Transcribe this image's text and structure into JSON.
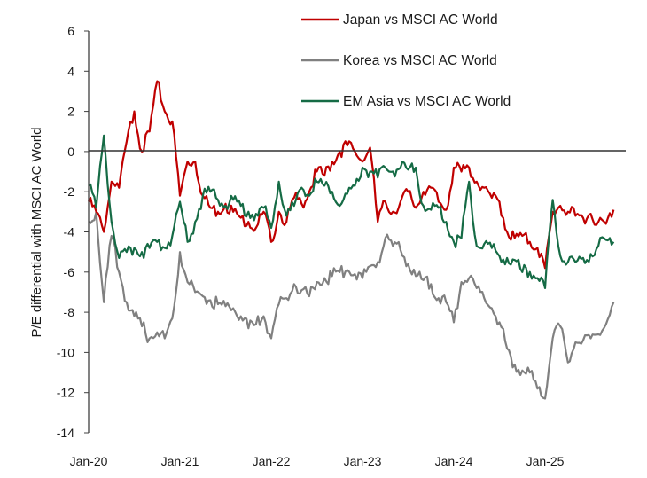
{
  "chart_data": {
    "type": "line",
    "title": "",
    "xlabel": "",
    "ylabel": "P/E differential with MSCI AC World",
    "ylim": [
      -14,
      6
    ],
    "yticks": [
      6,
      4,
      2,
      0,
      -2,
      -4,
      -6,
      -8,
      -10,
      -12,
      -14
    ],
    "xtick_labels": [
      "Jan-20",
      "Jan-21",
      "Jan-22",
      "Jan-23",
      "Jan-24",
      "Jan-25"
    ],
    "grid": false,
    "legend": "top-right",
    "x_start": "2020-01",
    "x_frequency": "monthly",
    "series": [
      {
        "name": "Japan vs MSCI AC World",
        "color": "#c00000",
        "values": [
          -2.5,
          -3,
          -4,
          -1.5,
          -1.8,
          0.5,
          2.0,
          0,
          1.0,
          3.5,
          2,
          1.5,
          -2.2,
          -0.5,
          -0.5,
          -2.2,
          -2.8,
          -3,
          -2.6,
          -3,
          -3.3,
          -3.5,
          -3.8,
          -3,
          -4.5,
          -3.0,
          -3.5,
          -2.3,
          -2.6,
          -2,
          -1.0,
          -1.2,
          -0.5,
          0,
          0.3,
          0,
          -0.5,
          0.2,
          -3.5,
          -2.5,
          -3,
          -2.5,
          -2,
          -2.8,
          -2,
          -1.8,
          -2.5,
          -2.9,
          -0.8,
          -1.0,
          -0.8,
          -1.5,
          -1.8,
          -2.3,
          -2.5,
          -4.0,
          -4.3,
          -4.2,
          -4.5,
          -4.8,
          -5.8,
          -3,
          -2.7,
          -3,
          -3.2,
          -3.3,
          -3.1,
          -3.5,
          -3.6,
          -2.9
        ]
      },
      {
        "name": "Korea vs MSCI AC World",
        "color": "#808080",
        "values": [
          -3.5,
          -3.0,
          -7.5,
          -4.2,
          -6,
          -7.5,
          -8.2,
          -8.7,
          -9.3,
          -9.0,
          -9.3,
          -8.3,
          -5.0,
          -6.5,
          -7,
          -7.2,
          -7.4,
          -7.6,
          -7.7,
          -7.8,
          -8.2,
          -8.8,
          -8.6,
          -8.2,
          -9.3,
          -7.6,
          -7.3,
          -6.6,
          -6.9,
          -7.2,
          -6.5,
          -6.3,
          -6.2,
          -6.0,
          -5.9,
          -6.1,
          -6.3,
          -5.7,
          -5.5,
          -4.3,
          -4.7,
          -4.9,
          -5.6,
          -6.2,
          -6.4,
          -6.6,
          -7.3,
          -7.5,
          -8.5,
          -6.5,
          -6.3,
          -6.8,
          -7.3,
          -7.8,
          -8.5,
          -9.8,
          -10.6,
          -10.9,
          -11.0,
          -11.8,
          -12.3,
          -9.3,
          -8.7,
          -10.5,
          -9.5,
          -9.4,
          -9.3,
          -9.1,
          -8.6,
          -7.5
        ]
      },
      {
        "name": "EM Asia vs MSCI AC World",
        "color": "#156b45",
        "values": [
          -1.7,
          -2.8,
          0.8,
          -3.5,
          -5.3,
          -5,
          -4.8,
          -5,
          -4.8,
          -4.5,
          -4.8,
          -4.2,
          -2.5,
          -4.5,
          -3.5,
          -2.2,
          -2.0,
          -2.4,
          -2.7,
          -2.4,
          -2.7,
          -3.0,
          -3.1,
          -2.8,
          -3.8,
          -1.5,
          -3.2,
          -2.7,
          -1.8,
          -2.2,
          -1.5,
          -1.7,
          -2.0,
          -2.7,
          -2.1,
          -1.7,
          -0.8,
          -1.0,
          -1.3,
          -0.8,
          -1.0,
          -0.8,
          -0.9,
          -0.8,
          -2.7,
          -2.9,
          -2.8,
          -3.5,
          -4.5,
          -4.3,
          -1.5,
          -4.7,
          -4.6,
          -4.8,
          -5.2,
          -5.3,
          -5.4,
          -6.0,
          -6.0,
          -6.3,
          -6.8,
          -2.4,
          -5.2,
          -5.5,
          -5.5,
          -5.3,
          -5.1,
          -4.7,
          -4.4,
          -4.5
        ]
      }
    ]
  }
}
